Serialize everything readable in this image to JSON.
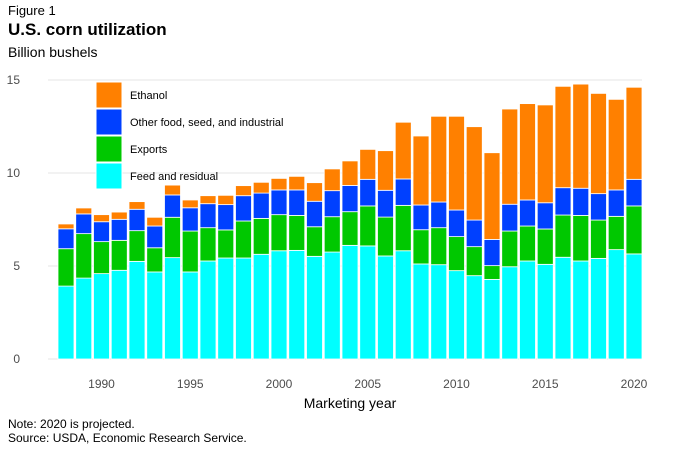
{
  "figure_label": "Figure 1",
  "title": "U.S. corn utilization",
  "unit_label": "Billion bushels",
  "note": "Note: 2020 is projected.",
  "source": "Source: USDA, Economic Research Service.",
  "chart_data": {
    "type": "bar",
    "stacked": true,
    "title": "U.S. corn utilization",
    "xlabel": "Marketing year",
    "ylabel": "Billion bushels",
    "ylim": [
      0,
      15
    ],
    "yticks": [
      0,
      5,
      10,
      15
    ],
    "xticks": [
      1990,
      1995,
      2000,
      2005,
      2010,
      2015,
      2020
    ],
    "grid": true,
    "legend_position": "top-left",
    "categories": [
      1988,
      1989,
      1990,
      1991,
      1992,
      1993,
      1994,
      1995,
      1996,
      1997,
      1998,
      1999,
      2000,
      2001,
      2002,
      2003,
      2004,
      2005,
      2006,
      2007,
      2008,
      2009,
      2010,
      2011,
      2012,
      2013,
      2014,
      2015,
      2016,
      2017,
      2018,
      2019,
      2020
    ],
    "series": [
      {
        "name": "Feed and residual",
        "color": "#00FFFF",
        "values": [
          3.92,
          4.35,
          4.59,
          4.77,
          5.25,
          4.68,
          5.45,
          4.68,
          5.27,
          5.43,
          5.43,
          5.63,
          5.82,
          5.84,
          5.52,
          5.75,
          6.11,
          6.08,
          5.54,
          5.82,
          5.11,
          5.07,
          4.75,
          4.48,
          4.28,
          4.96,
          5.27,
          5.09,
          5.47,
          5.27,
          5.41,
          5.88,
          5.65
        ]
      },
      {
        "name": "Exports",
        "color": "#00C800",
        "values": [
          2.01,
          2.39,
          1.72,
          1.61,
          1.65,
          1.3,
          2.17,
          2.2,
          1.79,
          1.51,
          1.99,
          1.93,
          1.94,
          1.88,
          1.59,
          1.9,
          1.81,
          2.15,
          2.09,
          2.44,
          1.84,
          1.99,
          1.83,
          1.56,
          0.74,
          1.92,
          1.88,
          1.9,
          2.27,
          2.45,
          2.06,
          1.79,
          2.58
        ]
      },
      {
        "name": "Other food, seed, and industrial",
        "color": "#0040FF",
        "values": [
          1.07,
          1.06,
          1.07,
          1.13,
          1.15,
          1.17,
          1.2,
          1.25,
          1.29,
          1.36,
          1.36,
          1.36,
          1.33,
          1.37,
          1.37,
          1.4,
          1.41,
          1.43,
          1.44,
          1.42,
          1.33,
          1.38,
          1.43,
          1.43,
          1.41,
          1.44,
          1.4,
          1.41,
          1.47,
          1.46,
          1.42,
          1.42,
          1.43
        ]
      },
      {
        "name": "Ethanol",
        "color": "#FF8000",
        "values": [
          0.26,
          0.32,
          0.38,
          0.39,
          0.41,
          0.47,
          0.53,
          0.42,
          0.43,
          0.5,
          0.54,
          0.58,
          0.62,
          0.73,
          1.0,
          1.17,
          1.32,
          1.61,
          2.13,
          3.05,
          3.71,
          4.61,
          5.04,
          5.02,
          4.66,
          5.12,
          5.18,
          5.26,
          5.45,
          5.6,
          5.39,
          4.87,
          4.95
        ]
      }
    ],
    "legend_order": [
      "Ethanol",
      "Other food, seed, and industrial",
      "Exports",
      "Feed and residual"
    ]
  }
}
